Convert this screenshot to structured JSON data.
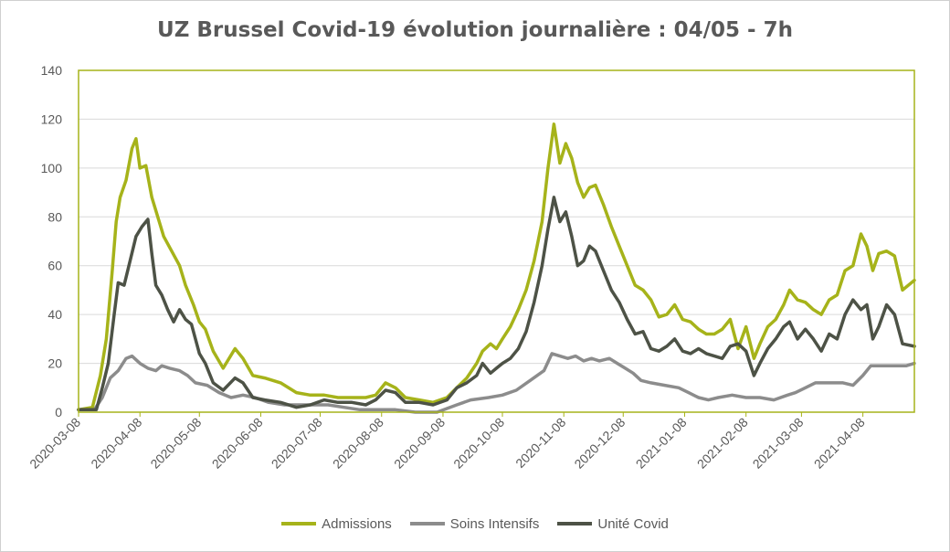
{
  "chart_data": {
    "type": "line",
    "title": "UZ Brussel Covid-19 évolution journalière : 04/05 - 7h",
    "xlabel": "",
    "ylabel": "",
    "ylim": [
      0,
      140
    ],
    "yticks": [
      0,
      20,
      40,
      60,
      80,
      100,
      120,
      140
    ],
    "x_start": "2020-03-08",
    "x_end": "2021-05-04",
    "xticks": [
      "2020-03-08",
      "2020-04-08",
      "2020-05-08",
      "2020-06-08",
      "2020-07-08",
      "2020-08-08",
      "2020-09-08",
      "2020-10-08",
      "2020-11-08",
      "2020-12-08",
      "2021-01-08",
      "2021-02-08",
      "2021-03-08",
      "2021-04-08"
    ],
    "grid": "horizontal",
    "legend_position": "bottom",
    "series": [
      {
        "name": "Admissions",
        "color": "#a6b31a",
        "points": [
          [
            "2020-03-08",
            1
          ],
          [
            "2020-03-15",
            2
          ],
          [
            "2020-03-19",
            15
          ],
          [
            "2020-03-22",
            30
          ],
          [
            "2020-03-25",
            58
          ],
          [
            "2020-03-27",
            78
          ],
          [
            "2020-03-29",
            88
          ],
          [
            "2020-04-01",
            95
          ],
          [
            "2020-04-04",
            108
          ],
          [
            "2020-04-06",
            112
          ],
          [
            "2020-04-08",
            100
          ],
          [
            "2020-04-11",
            101
          ],
          [
            "2020-04-14",
            88
          ],
          [
            "2020-04-17",
            80
          ],
          [
            "2020-04-20",
            72
          ],
          [
            "2020-04-24",
            66
          ],
          [
            "2020-04-28",
            60
          ],
          [
            "2020-05-01",
            52
          ],
          [
            "2020-05-05",
            44
          ],
          [
            "2020-05-08",
            37
          ],
          [
            "2020-05-11",
            34
          ],
          [
            "2020-05-15",
            25
          ],
          [
            "2020-05-20",
            18
          ],
          [
            "2020-05-26",
            26
          ],
          [
            "2020-05-30",
            22
          ],
          [
            "2020-06-04",
            15
          ],
          [
            "2020-06-10",
            14
          ],
          [
            "2020-06-18",
            12
          ],
          [
            "2020-06-26",
            8
          ],
          [
            "2020-07-03",
            7
          ],
          [
            "2020-07-10",
            7
          ],
          [
            "2020-07-17",
            6
          ],
          [
            "2020-07-24",
            6
          ],
          [
            "2020-07-31",
            6
          ],
          [
            "2020-08-05",
            7
          ],
          [
            "2020-08-10",
            12
          ],
          [
            "2020-08-15",
            10
          ],
          [
            "2020-08-20",
            6
          ],
          [
            "2020-08-27",
            5
          ],
          [
            "2020-09-03",
            4
          ],
          [
            "2020-09-10",
            6
          ],
          [
            "2020-09-15",
            10
          ],
          [
            "2020-09-20",
            14
          ],
          [
            "2020-09-25",
            20
          ],
          [
            "2020-09-28",
            25
          ],
          [
            "2020-10-02",
            28
          ],
          [
            "2020-10-05",
            26
          ],
          [
            "2020-10-08",
            30
          ],
          [
            "2020-10-12",
            35
          ],
          [
            "2020-10-16",
            42
          ],
          [
            "2020-10-20",
            50
          ],
          [
            "2020-10-24",
            62
          ],
          [
            "2020-10-28",
            78
          ],
          [
            "2020-10-31",
            100
          ],
          [
            "2020-11-03",
            118
          ],
          [
            "2020-11-06",
            102
          ],
          [
            "2020-11-09",
            110
          ],
          [
            "2020-11-12",
            104
          ],
          [
            "2020-11-15",
            94
          ],
          [
            "2020-11-18",
            88
          ],
          [
            "2020-11-21",
            92
          ],
          [
            "2020-11-24",
            93
          ],
          [
            "2020-11-28",
            85
          ],
          [
            "2020-12-02",
            76
          ],
          [
            "2020-12-06",
            68
          ],
          [
            "2020-12-10",
            60
          ],
          [
            "2020-12-14",
            52
          ],
          [
            "2020-12-18",
            50
          ],
          [
            "2020-12-22",
            46
          ],
          [
            "2020-12-26",
            39
          ],
          [
            "2020-12-30",
            40
          ],
          [
            "2021-01-03",
            44
          ],
          [
            "2021-01-07",
            38
          ],
          [
            "2021-01-11",
            37
          ],
          [
            "2021-01-15",
            34
          ],
          [
            "2021-01-19",
            32
          ],
          [
            "2021-01-23",
            32
          ],
          [
            "2021-01-27",
            34
          ],
          [
            "2021-01-31",
            38
          ],
          [
            "2021-02-04",
            26
          ],
          [
            "2021-02-08",
            35
          ],
          [
            "2021-02-12",
            22
          ],
          [
            "2021-02-15",
            28
          ],
          [
            "2021-02-19",
            35
          ],
          [
            "2021-02-23",
            38
          ],
          [
            "2021-02-27",
            44
          ],
          [
            "2021-03-02",
            50
          ],
          [
            "2021-03-06",
            46
          ],
          [
            "2021-03-10",
            45
          ],
          [
            "2021-03-14",
            42
          ],
          [
            "2021-03-18",
            40
          ],
          [
            "2021-03-22",
            46
          ],
          [
            "2021-03-26",
            48
          ],
          [
            "2021-03-30",
            58
          ],
          [
            "2021-04-03",
            60
          ],
          [
            "2021-04-07",
            73
          ],
          [
            "2021-04-10",
            68
          ],
          [
            "2021-04-13",
            58
          ],
          [
            "2021-04-16",
            65
          ],
          [
            "2021-04-20",
            66
          ],
          [
            "2021-04-24",
            64
          ],
          [
            "2021-04-28",
            50
          ],
          [
            "2021-05-04",
            54
          ]
        ]
      },
      {
        "name": "Soins Intensifs",
        "color": "#8c8c8c",
        "points": [
          [
            "2020-03-08",
            1
          ],
          [
            "2020-03-16",
            1
          ],
          [
            "2020-03-20",
            6
          ],
          [
            "2020-03-24",
            14
          ],
          [
            "2020-03-28",
            17
          ],
          [
            "2020-04-01",
            22
          ],
          [
            "2020-04-04",
            23
          ],
          [
            "2020-04-08",
            20
          ],
          [
            "2020-04-12",
            18
          ],
          [
            "2020-04-16",
            17
          ],
          [
            "2020-04-19",
            19
          ],
          [
            "2020-04-23",
            18
          ],
          [
            "2020-04-28",
            17
          ],
          [
            "2020-05-02",
            15
          ],
          [
            "2020-05-06",
            12
          ],
          [
            "2020-05-12",
            11
          ],
          [
            "2020-05-18",
            8
          ],
          [
            "2020-05-24",
            6
          ],
          [
            "2020-05-30",
            7
          ],
          [
            "2020-06-05",
            6
          ],
          [
            "2020-06-12",
            4
          ],
          [
            "2020-06-20",
            3
          ],
          [
            "2020-06-28",
            3
          ],
          [
            "2020-07-05",
            3
          ],
          [
            "2020-07-12",
            3
          ],
          [
            "2020-07-20",
            2
          ],
          [
            "2020-07-28",
            1
          ],
          [
            "2020-08-05",
            1
          ],
          [
            "2020-08-15",
            1
          ],
          [
            "2020-08-25",
            0
          ],
          [
            "2020-09-05",
            0
          ],
          [
            "2020-09-15",
            3
          ],
          [
            "2020-09-22",
            5
          ],
          [
            "2020-10-01",
            6
          ],
          [
            "2020-10-08",
            7
          ],
          [
            "2020-10-15",
            9
          ],
          [
            "2020-10-22",
            13
          ],
          [
            "2020-10-29",
            17
          ],
          [
            "2020-11-02",
            24
          ],
          [
            "2020-11-06",
            23
          ],
          [
            "2020-11-10",
            22
          ],
          [
            "2020-11-14",
            23
          ],
          [
            "2020-11-18",
            21
          ],
          [
            "2020-11-22",
            22
          ],
          [
            "2020-11-26",
            21
          ],
          [
            "2020-12-01",
            22
          ],
          [
            "2020-12-05",
            20
          ],
          [
            "2020-12-09",
            18
          ],
          [
            "2020-12-13",
            16
          ],
          [
            "2020-12-17",
            13
          ],
          [
            "2020-12-22",
            12
          ],
          [
            "2020-12-29",
            11
          ],
          [
            "2021-01-05",
            10
          ],
          [
            "2021-01-10",
            8
          ],
          [
            "2021-01-15",
            6
          ],
          [
            "2021-01-20",
            5
          ],
          [
            "2021-01-25",
            6
          ],
          [
            "2021-02-01",
            7
          ],
          [
            "2021-02-08",
            6
          ],
          [
            "2021-02-15",
            6
          ],
          [
            "2021-02-22",
            5
          ],
          [
            "2021-03-01",
            7
          ],
          [
            "2021-03-05",
            8
          ],
          [
            "2021-03-10",
            10
          ],
          [
            "2021-03-15",
            12
          ],
          [
            "2021-03-22",
            12
          ],
          [
            "2021-03-29",
            12
          ],
          [
            "2021-04-03",
            11
          ],
          [
            "2021-04-08",
            15
          ],
          [
            "2021-04-12",
            19
          ],
          [
            "2021-04-18",
            19
          ],
          [
            "2021-04-24",
            19
          ],
          [
            "2021-04-30",
            19
          ],
          [
            "2021-05-04",
            20
          ]
        ]
      },
      {
        "name": "Unité Covid",
        "color": "#4d5246",
        "points": [
          [
            "2020-03-08",
            1
          ],
          [
            "2020-03-17",
            1
          ],
          [
            "2020-03-20",
            10
          ],
          [
            "2020-03-23",
            20
          ],
          [
            "2020-03-26",
            40
          ],
          [
            "2020-03-28",
            53
          ],
          [
            "2020-03-31",
            52
          ],
          [
            "2020-04-03",
            62
          ],
          [
            "2020-04-06",
            72
          ],
          [
            "2020-04-09",
            76
          ],
          [
            "2020-04-12",
            79
          ],
          [
            "2020-04-14",
            65
          ],
          [
            "2020-04-16",
            52
          ],
          [
            "2020-04-19",
            48
          ],
          [
            "2020-04-22",
            42
          ],
          [
            "2020-04-25",
            37
          ],
          [
            "2020-04-28",
            42
          ],
          [
            "2020-05-01",
            38
          ],
          [
            "2020-05-04",
            36
          ],
          [
            "2020-05-08",
            24
          ],
          [
            "2020-05-11",
            20
          ],
          [
            "2020-05-15",
            12
          ],
          [
            "2020-05-20",
            9
          ],
          [
            "2020-05-26",
            14
          ],
          [
            "2020-05-30",
            12
          ],
          [
            "2020-06-04",
            6
          ],
          [
            "2020-06-10",
            5
          ],
          [
            "2020-06-18",
            4
          ],
          [
            "2020-06-26",
            2
          ],
          [
            "2020-07-03",
            3
          ],
          [
            "2020-07-10",
            5
          ],
          [
            "2020-07-17",
            4
          ],
          [
            "2020-07-24",
            4
          ],
          [
            "2020-07-31",
            3
          ],
          [
            "2020-08-05",
            5
          ],
          [
            "2020-08-10",
            9
          ],
          [
            "2020-08-15",
            8
          ],
          [
            "2020-08-20",
            4
          ],
          [
            "2020-08-27",
            4
          ],
          [
            "2020-09-03",
            3
          ],
          [
            "2020-09-10",
            5
          ],
          [
            "2020-09-15",
            10
          ],
          [
            "2020-09-20",
            12
          ],
          [
            "2020-09-25",
            15
          ],
          [
            "2020-09-28",
            20
          ],
          [
            "2020-10-02",
            16
          ],
          [
            "2020-10-05",
            18
          ],
          [
            "2020-10-08",
            20
          ],
          [
            "2020-10-12",
            22
          ],
          [
            "2020-10-16",
            26
          ],
          [
            "2020-10-20",
            33
          ],
          [
            "2020-10-24",
            45
          ],
          [
            "2020-10-28",
            60
          ],
          [
            "2020-10-31",
            75
          ],
          [
            "2020-11-03",
            88
          ],
          [
            "2020-11-06",
            78
          ],
          [
            "2020-11-09",
            82
          ],
          [
            "2020-11-12",
            72
          ],
          [
            "2020-11-15",
            60
          ],
          [
            "2020-11-18",
            62
          ],
          [
            "2020-11-21",
            68
          ],
          [
            "2020-11-24",
            66
          ],
          [
            "2020-11-28",
            58
          ],
          [
            "2020-12-02",
            50
          ],
          [
            "2020-12-06",
            45
          ],
          [
            "2020-12-10",
            38
          ],
          [
            "2020-12-14",
            32
          ],
          [
            "2020-12-18",
            33
          ],
          [
            "2020-12-22",
            26
          ],
          [
            "2020-12-26",
            25
          ],
          [
            "2020-12-30",
            27
          ],
          [
            "2021-01-03",
            30
          ],
          [
            "2021-01-07",
            25
          ],
          [
            "2021-01-11",
            24
          ],
          [
            "2021-01-15",
            26
          ],
          [
            "2021-01-19",
            24
          ],
          [
            "2021-01-23",
            23
          ],
          [
            "2021-01-27",
            22
          ],
          [
            "2021-01-31",
            27
          ],
          [
            "2021-02-04",
            28
          ],
          [
            "2021-02-08",
            25
          ],
          [
            "2021-02-12",
            15
          ],
          [
            "2021-02-15",
            20
          ],
          [
            "2021-02-19",
            26
          ],
          [
            "2021-02-23",
            30
          ],
          [
            "2021-02-27",
            35
          ],
          [
            "2021-03-02",
            37
          ],
          [
            "2021-03-06",
            30
          ],
          [
            "2021-03-10",
            34
          ],
          [
            "2021-03-14",
            30
          ],
          [
            "2021-03-18",
            25
          ],
          [
            "2021-03-22",
            32
          ],
          [
            "2021-03-26",
            30
          ],
          [
            "2021-03-30",
            40
          ],
          [
            "2021-04-03",
            46
          ],
          [
            "2021-04-07",
            42
          ],
          [
            "2021-04-10",
            44
          ],
          [
            "2021-04-13",
            30
          ],
          [
            "2021-04-16",
            35
          ],
          [
            "2021-04-20",
            44
          ],
          [
            "2021-04-24",
            40
          ],
          [
            "2021-04-28",
            28
          ],
          [
            "2021-05-04",
            27
          ]
        ]
      }
    ]
  }
}
